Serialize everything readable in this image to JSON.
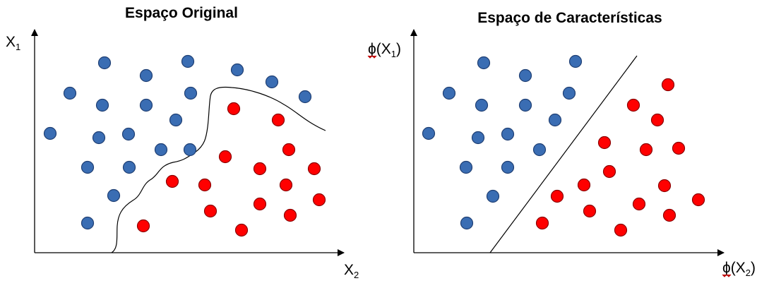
{
  "left_panel": {
    "title": "Espaço Original",
    "y_axis_label": "X",
    "y_axis_subscript": "1",
    "x_axis_label": "X",
    "x_axis_subscript": "2"
  },
  "right_panel": {
    "title": "Espaço de Características",
    "y_axis_label_prefix": "ϕ(X",
    "y_axis_subscript": "1",
    "y_axis_label_suffix": ")",
    "x_axis_label_prefix": "ϕ(X",
    "x_axis_subscript": "2",
    "x_axis_label_suffix": ")"
  },
  "colors": {
    "class_blue": "#3a6db3",
    "class_blue_stroke": "#1f3f73",
    "class_red": "#ff0000",
    "class_red_stroke": "#8a0000",
    "axis": "#000000",
    "boundary": "#000000"
  }
}
